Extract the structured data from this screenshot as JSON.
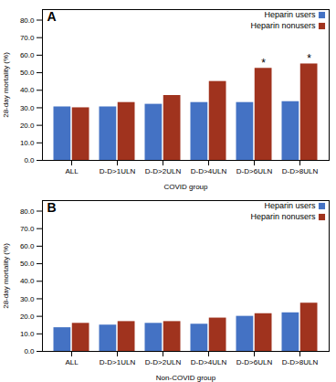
{
  "chart_data": [
    {
      "type": "bar",
      "title": "A",
      "categories": [
        "ALL",
        "D-D>1ULN",
        "D-D>2ULN",
        "D-D>4ULN",
        "D-D>6ULN",
        "D-D>8ULN"
      ],
      "series": [
        {
          "name": "Heparin users",
          "color": "#4472c4",
          "values": [
            30.5,
            30.5,
            32.0,
            33.0,
            33.0,
            33.5
          ]
        },
        {
          "name": "Heparin nonusers",
          "color": "#a0331e",
          "values": [
            30.0,
            33.0,
            37.0,
            45.0,
            52.5,
            55.0
          ]
        }
      ],
      "xlabel": "COVID group",
      "ylabel": "28-day mortality (%)",
      "ylim": [
        0,
        86
      ],
      "yticks": [
        {
          "value": 0,
          "label": "0.0"
        },
        {
          "value": 10,
          "label": "10.0"
        },
        {
          "value": 20,
          "label": "20.0"
        },
        {
          "value": 30,
          "label": "30.0"
        },
        {
          "value": 40,
          "label": "40.0"
        },
        {
          "value": 50,
          "label": "50.0"
        },
        {
          "value": 60,
          "label": "60.0"
        },
        {
          "value": 70,
          "label": "70.0"
        },
        {
          "value": 80,
          "label": "80.0"
        }
      ],
      "grid": false,
      "legend": "upper right",
      "annotations": [
        {
          "text": "*",
          "category": "D-D>6ULN",
          "series": "Heparin nonusers"
        },
        {
          "text": "*",
          "category": "D-D>8ULN",
          "series": "Heparin nonusers"
        }
      ]
    },
    {
      "type": "bar",
      "title": "B",
      "categories": [
        "ALL",
        "D-D>1ULN",
        "D-D>2ULN",
        "D-D>4ULN",
        "D-D>6ULN",
        "D-D>8ULN"
      ],
      "series": [
        {
          "name": "Heparin users",
          "color": "#4472c4",
          "values": [
            13.5,
            15.0,
            16.0,
            15.5,
            20.0,
            22.0
          ]
        },
        {
          "name": "Heparin nonusers",
          "color": "#a0331e",
          "values": [
            16.0,
            17.0,
            17.0,
            19.0,
            21.5,
            27.5
          ]
        }
      ],
      "xlabel": "Non-COVID group",
      "ylabel": "28-day mortality (%)",
      "ylim": [
        0,
        86
      ],
      "yticks": [
        {
          "value": 0,
          "label": "0.0"
        },
        {
          "value": 10,
          "label": "10.0"
        },
        {
          "value": 20,
          "label": "20.0"
        },
        {
          "value": 30,
          "label": "30.0"
        },
        {
          "value": 40,
          "label": "40.0"
        },
        {
          "value": 50,
          "label": "50.0"
        },
        {
          "value": 60,
          "label": "60.0"
        },
        {
          "value": 70,
          "label": "70.0"
        },
        {
          "value": 80,
          "label": "80.0"
        }
      ],
      "grid": false,
      "legend": "upper right"
    }
  ]
}
